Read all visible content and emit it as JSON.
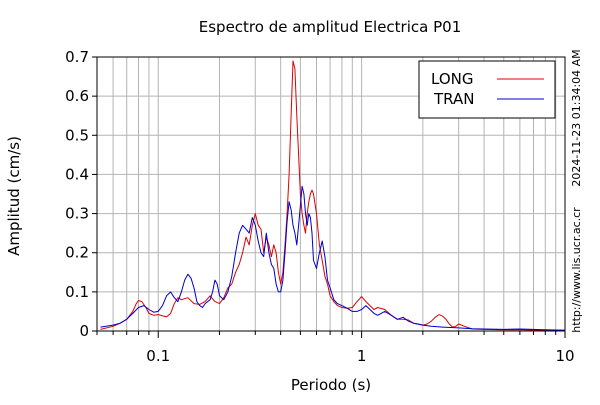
{
  "chart_data": {
    "type": "line",
    "title": "Espectro de amplitud Electrica P01",
    "xlabel": "Periodo (s)",
    "ylabel": "Amplitud (cm/s)",
    "x_scale": "log",
    "xlim": [
      0.05,
      10
    ],
    "ylim": [
      0,
      0.7
    ],
    "x_tick_labels": [
      {
        "value": 0.1,
        "label": "0.1"
      },
      {
        "value": 1,
        "label": "1"
      },
      {
        "value": 10,
        "label": "10"
      }
    ],
    "y_tick_labels": [
      {
        "value": 0,
        "label": "0"
      },
      {
        "value": 0.1,
        "label": "0.1"
      },
      {
        "value": 0.2,
        "label": "0.2"
      },
      {
        "value": 0.3,
        "label": "0.3"
      },
      {
        "value": 0.4,
        "label": "0.4"
      },
      {
        "value": 0.5,
        "label": "0.5"
      },
      {
        "value": 0.6,
        "label": "0.6"
      },
      {
        "value": 0.7,
        "label": "0.7"
      }
    ],
    "grid": true,
    "legend_position": "top-right",
    "series": [
      {
        "name": "LONG",
        "color": "#dd0000",
        "points": [
          [
            0.052,
            0.004
          ],
          [
            0.06,
            0.012
          ],
          [
            0.065,
            0.02
          ],
          [
            0.07,
            0.03
          ],
          [
            0.075,
            0.05
          ],
          [
            0.078,
            0.07
          ],
          [
            0.08,
            0.078
          ],
          [
            0.083,
            0.075
          ],
          [
            0.087,
            0.06
          ],
          [
            0.09,
            0.045
          ],
          [
            0.095,
            0.04
          ],
          [
            0.1,
            0.042
          ],
          [
            0.11,
            0.036
          ],
          [
            0.115,
            0.045
          ],
          [
            0.12,
            0.07
          ],
          [
            0.125,
            0.085
          ],
          [
            0.13,
            0.08
          ],
          [
            0.14,
            0.085
          ],
          [
            0.15,
            0.07
          ],
          [
            0.16,
            0.068
          ],
          [
            0.17,
            0.075
          ],
          [
            0.18,
            0.09
          ],
          [
            0.19,
            0.075
          ],
          [
            0.2,
            0.07
          ],
          [
            0.21,
            0.085
          ],
          [
            0.22,
            0.11
          ],
          [
            0.23,
            0.12
          ],
          [
            0.24,
            0.15
          ],
          [
            0.25,
            0.17
          ],
          [
            0.26,
            0.2
          ],
          [
            0.27,
            0.24
          ],
          [
            0.28,
            0.22
          ],
          [
            0.29,
            0.27
          ],
          [
            0.3,
            0.3
          ],
          [
            0.31,
            0.27
          ],
          [
            0.32,
            0.26
          ],
          [
            0.33,
            0.2
          ],
          [
            0.34,
            0.24
          ],
          [
            0.35,
            0.22
          ],
          [
            0.36,
            0.19
          ],
          [
            0.37,
            0.22
          ],
          [
            0.38,
            0.2
          ],
          [
            0.39,
            0.15
          ],
          [
            0.4,
            0.12
          ],
          [
            0.41,
            0.15
          ],
          [
            0.42,
            0.22
          ],
          [
            0.43,
            0.3
          ],
          [
            0.44,
            0.4
          ],
          [
            0.45,
            0.55
          ],
          [
            0.46,
            0.69
          ],
          [
            0.47,
            0.67
          ],
          [
            0.48,
            0.55
          ],
          [
            0.49,
            0.45
          ],
          [
            0.5,
            0.35
          ],
          [
            0.51,
            0.3
          ],
          [
            0.52,
            0.27
          ],
          [
            0.53,
            0.25
          ],
          [
            0.54,
            0.3
          ],
          [
            0.55,
            0.33
          ],
          [
            0.56,
            0.35
          ],
          [
            0.57,
            0.36
          ],
          [
            0.58,
            0.35
          ],
          [
            0.6,
            0.3
          ],
          [
            0.62,
            0.22
          ],
          [
            0.64,
            0.18
          ],
          [
            0.66,
            0.14
          ],
          [
            0.68,
            0.12
          ],
          [
            0.7,
            0.09
          ],
          [
            0.73,
            0.075
          ],
          [
            0.76,
            0.065
          ],
          [
            0.8,
            0.06
          ],
          [
            0.85,
            0.058
          ],
          [
            0.9,
            0.06
          ],
          [
            0.95,
            0.075
          ],
          [
            1.0,
            0.088
          ],
          [
            1.05,
            0.075
          ],
          [
            1.1,
            0.065
          ],
          [
            1.15,
            0.055
          ],
          [
            1.2,
            0.06
          ],
          [
            1.3,
            0.055
          ],
          [
            1.4,
            0.04
          ],
          [
            1.5,
            0.03
          ],
          [
            1.6,
            0.03
          ],
          [
            1.7,
            0.028
          ],
          [
            1.8,
            0.02
          ],
          [
            1.9,
            0.018
          ],
          [
            2.0,
            0.015
          ],
          [
            2.1,
            0.018
          ],
          [
            2.2,
            0.025
          ],
          [
            2.3,
            0.035
          ],
          [
            2.4,
            0.042
          ],
          [
            2.5,
            0.038
          ],
          [
            2.6,
            0.03
          ],
          [
            2.7,
            0.018
          ],
          [
            2.8,
            0.01
          ],
          [
            2.9,
            0.012
          ],
          [
            3.0,
            0.018
          ],
          [
            3.2,
            0.012
          ],
          [
            3.5,
            0.005
          ],
          [
            4.0,
            0.004
          ],
          [
            5.0,
            0.003
          ],
          [
            6.0,
            0.003
          ],
          [
            8.0,
            0.002
          ],
          [
            10.0,
            0.002
          ]
        ]
      },
      {
        "name": "TRAN",
        "color": "#0000cc",
        "points": [
          [
            0.052,
            0.01
          ],
          [
            0.06,
            0.015
          ],
          [
            0.065,
            0.02
          ],
          [
            0.07,
            0.03
          ],
          [
            0.075,
            0.045
          ],
          [
            0.08,
            0.06
          ],
          [
            0.085,
            0.065
          ],
          [
            0.09,
            0.055
          ],
          [
            0.095,
            0.048
          ],
          [
            0.1,
            0.05
          ],
          [
            0.105,
            0.065
          ],
          [
            0.11,
            0.09
          ],
          [
            0.115,
            0.1
          ],
          [
            0.12,
            0.085
          ],
          [
            0.125,
            0.075
          ],
          [
            0.13,
            0.1
          ],
          [
            0.135,
            0.13
          ],
          [
            0.14,
            0.145
          ],
          [
            0.145,
            0.135
          ],
          [
            0.15,
            0.11
          ],
          [
            0.155,
            0.075
          ],
          [
            0.16,
            0.065
          ],
          [
            0.165,
            0.06
          ],
          [
            0.17,
            0.07
          ],
          [
            0.18,
            0.08
          ],
          [
            0.185,
            0.1
          ],
          [
            0.19,
            0.13
          ],
          [
            0.195,
            0.12
          ],
          [
            0.2,
            0.09
          ],
          [
            0.21,
            0.08
          ],
          [
            0.22,
            0.1
          ],
          [
            0.23,
            0.14
          ],
          [
            0.24,
            0.2
          ],
          [
            0.25,
            0.25
          ],
          [
            0.26,
            0.27
          ],
          [
            0.27,
            0.26
          ],
          [
            0.28,
            0.25
          ],
          [
            0.29,
            0.29
          ],
          [
            0.3,
            0.27
          ],
          [
            0.31,
            0.23
          ],
          [
            0.32,
            0.2
          ],
          [
            0.33,
            0.19
          ],
          [
            0.34,
            0.25
          ],
          [
            0.35,
            0.2
          ],
          [
            0.36,
            0.17
          ],
          [
            0.37,
            0.16
          ],
          [
            0.38,
            0.12
          ],
          [
            0.39,
            0.1
          ],
          [
            0.4,
            0.1
          ],
          [
            0.41,
            0.13
          ],
          [
            0.42,
            0.2
          ],
          [
            0.43,
            0.28
          ],
          [
            0.44,
            0.33
          ],
          [
            0.45,
            0.31
          ],
          [
            0.46,
            0.27
          ],
          [
            0.47,
            0.25
          ],
          [
            0.48,
            0.22
          ],
          [
            0.49,
            0.27
          ],
          [
            0.5,
            0.32
          ],
          [
            0.51,
            0.37
          ],
          [
            0.52,
            0.35
          ],
          [
            0.53,
            0.3
          ],
          [
            0.54,
            0.27
          ],
          [
            0.55,
            0.3
          ],
          [
            0.56,
            0.29
          ],
          [
            0.57,
            0.25
          ],
          [
            0.58,
            0.18
          ],
          [
            0.6,
            0.16
          ],
          [
            0.62,
            0.2
          ],
          [
            0.64,
            0.23
          ],
          [
            0.66,
            0.19
          ],
          [
            0.68,
            0.13
          ],
          [
            0.7,
            0.11
          ],
          [
            0.73,
            0.08
          ],
          [
            0.76,
            0.07
          ],
          [
            0.8,
            0.065
          ],
          [
            0.85,
            0.058
          ],
          [
            0.9,
            0.05
          ],
          [
            0.95,
            0.05
          ],
          [
            1.0,
            0.055
          ],
          [
            1.05,
            0.065
          ],
          [
            1.1,
            0.055
          ],
          [
            1.15,
            0.045
          ],
          [
            1.2,
            0.04
          ],
          [
            1.3,
            0.05
          ],
          [
            1.4,
            0.04
          ],
          [
            1.5,
            0.03
          ],
          [
            1.6,
            0.035
          ],
          [
            1.7,
            0.025
          ],
          [
            1.8,
            0.02
          ],
          [
            2.0,
            0.015
          ],
          [
            2.2,
            0.012
          ],
          [
            2.5,
            0.01
          ],
          [
            3.0,
            0.008
          ],
          [
            3.5,
            0.006
          ],
          [
            4.0,
            0.005
          ],
          [
            5.0,
            0.004
          ],
          [
            6.0,
            0.005
          ],
          [
            8.0,
            0.003
          ],
          [
            10.0,
            0.002
          ]
        ]
      }
    ]
  },
  "side_text": {
    "timestamp": "2024-11-23 01:34:04 AM",
    "url": "http://www.lis.ucr.ac.cr"
  }
}
